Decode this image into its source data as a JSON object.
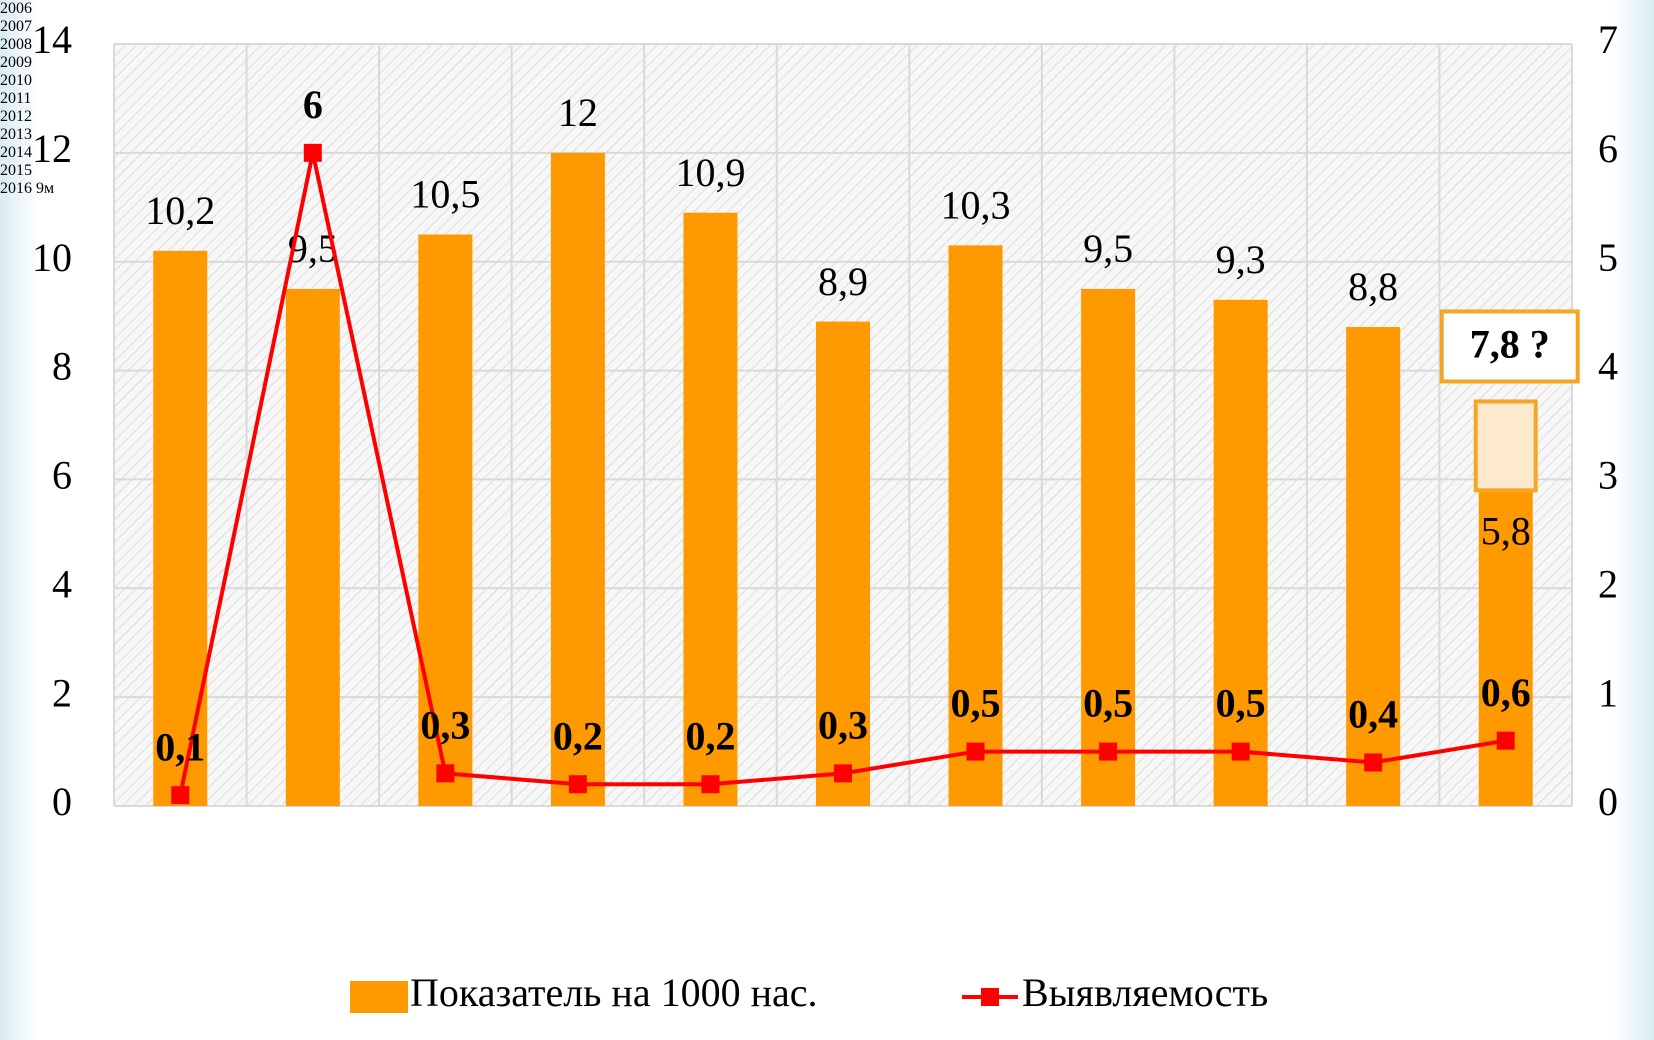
{
  "chart_data": {
    "type": "bar",
    "categories": [
      "2006",
      "2007",
      "2008",
      "2009",
      "2010",
      "2011",
      "2012",
      "2013",
      "2014",
      "2015",
      "2016 9м"
    ],
    "series": [
      {
        "name": "Показатель на 1000 нас.",
        "type": "bar",
        "color": "#ff9900",
        "values": [
          10.2,
          9.5,
          10.5,
          12,
          10.9,
          8.9,
          10.3,
          9.5,
          9.3,
          8.8,
          5.8
        ],
        "value_labels": [
          "10,2",
          "9,5",
          "10,5",
          "12",
          "10,9",
          "8,9",
          "10,3",
          "9,5",
          "9,3",
          "8,8",
          "5,8"
        ]
      },
      {
        "name": "Выявляемость",
        "type": "line",
        "axis": "y2",
        "color": "#ff0000",
        "values": [
          0.1,
          6,
          0.3,
          0.2,
          0.2,
          0.3,
          0.5,
          0.5,
          0.5,
          0.4,
          0.6
        ],
        "value_labels": [
          "0,1",
          "6",
          "0,3",
          "0,2",
          "0,2",
          "0,3",
          "0,5",
          "0,5",
          "0,5",
          "0,4",
          "0,6"
        ]
      }
    ],
    "annotation": {
      "label": "7,8 ?",
      "value": 7.8
    },
    "ylim": [
      0,
      14
    ],
    "yticks": [
      0,
      2,
      4,
      6,
      8,
      10,
      12,
      14
    ],
    "y2lim": [
      0,
      7
    ],
    "y2ticks": [
      0,
      1,
      2,
      3,
      4,
      5,
      6,
      7
    ],
    "grid": true,
    "legend": "bottom"
  }
}
